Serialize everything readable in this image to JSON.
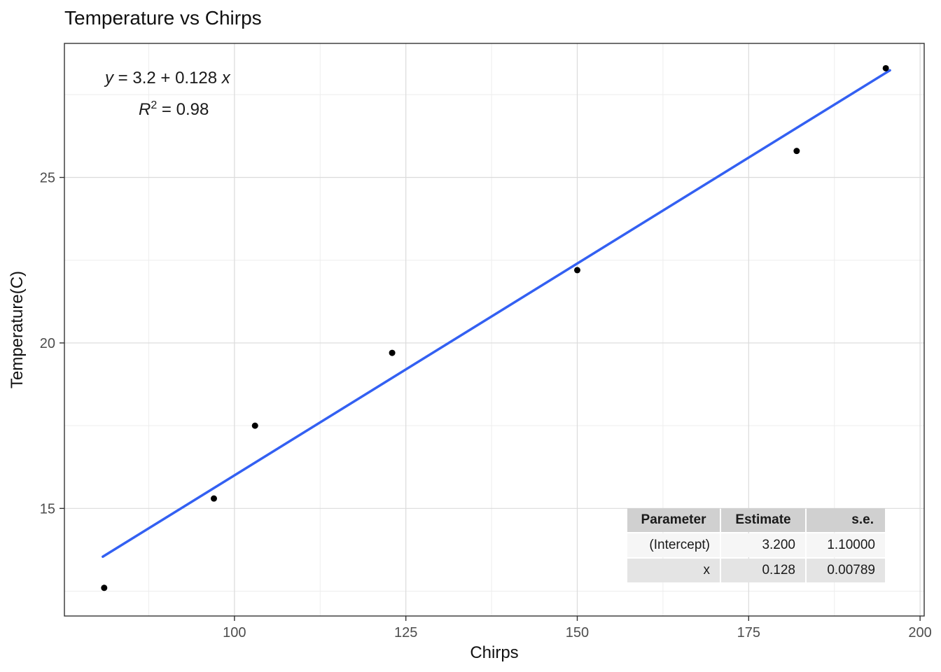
{
  "chart_data": {
    "type": "scatter",
    "title": "Temperature vs Chirps",
    "xlabel": "Chirps",
    "ylabel": "Temperature(C)",
    "xlim": [
      75.2,
      200.6
    ],
    "ylim": [
      11.75,
      29.05
    ],
    "x_ticks": [
      100,
      125,
      150,
      175,
      200
    ],
    "y_ticks": [
      15,
      20,
      25
    ],
    "x_minor_ticks": [
      87.5,
      112.5,
      137.5,
      162.5,
      187.5
    ],
    "y_minor_ticks": [
      12.5,
      17.5,
      22.5,
      27.5
    ],
    "points": [
      [
        81,
        12.6
      ],
      [
        97,
        15.3
      ],
      [
        103,
        17.5
      ],
      [
        123,
        19.7
      ],
      [
        150,
        22.2
      ],
      [
        182,
        25.8
      ],
      [
        195,
        28.3
      ]
    ],
    "regression": {
      "intercept": 3.2,
      "slope": 0.128,
      "x_start": 80.8,
      "x_end": 195.6,
      "color": "#3360f2",
      "width": 3.5
    },
    "point_color": "#000000",
    "point_radius": 4.5,
    "grid_major_color": "#dbdbdb",
    "grid_minor_color": "#ededed",
    "panel_border_color": "#333333",
    "tick_color": "#333333",
    "tick_label_color": "#4d4d4d",
    "axis_title_color": "#111111",
    "legend_position": "none",
    "grid": "on"
  },
  "annotation": {
    "eq_lhs": "y",
    "eq_mid": " = 3.2 + 0.128 ",
    "eq_rhs": "x",
    "r2_base": "R",
    "r2_sup": "2",
    "r2_rest": " = 0.98"
  },
  "stats_table": {
    "headers": [
      "Parameter",
      "Estimate",
      "s.e."
    ],
    "rows": [
      [
        "(Intercept)",
        "3.200",
        "1.10000"
      ],
      [
        "x",
        "0.128",
        "0.00789"
      ]
    ]
  }
}
